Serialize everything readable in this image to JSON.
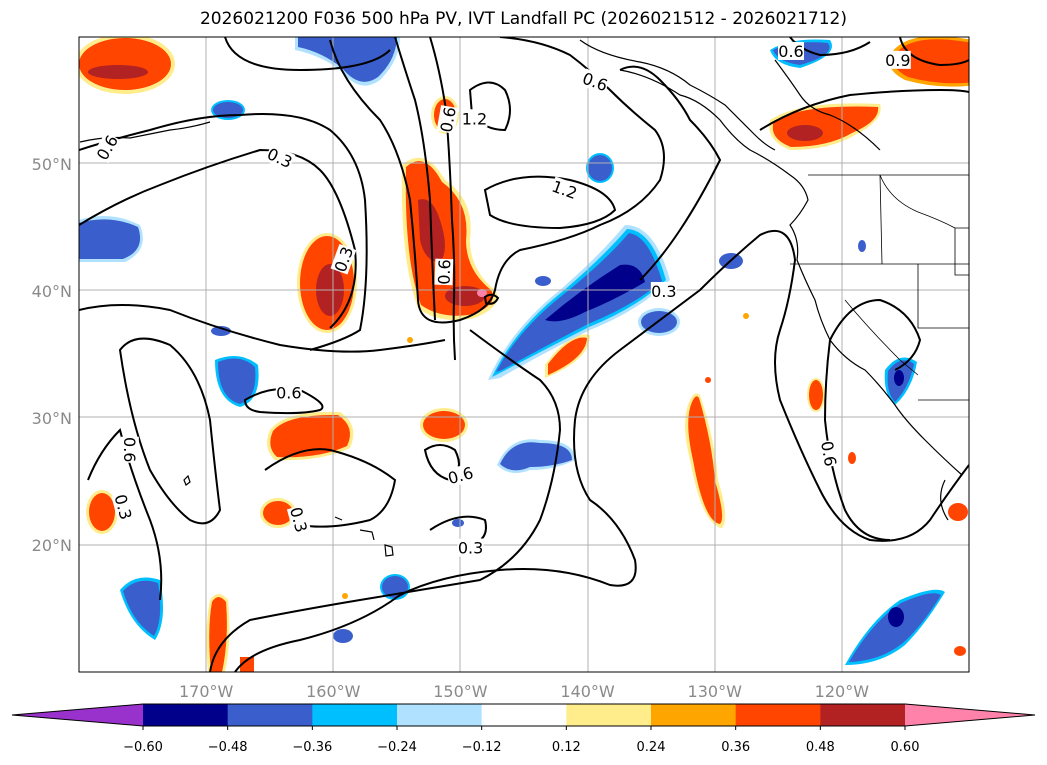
{
  "title": "2026021200 F036 500 hPa PV, IVT Landfall PC (2026021512 - 2026021712)",
  "map": {
    "lon_range": [
      -180,
      -110
    ],
    "lat_range": [
      10,
      60
    ],
    "lat_ticks": [
      {
        "value": 20,
        "label": "20°N"
      },
      {
        "value": 30,
        "label": "30°N"
      },
      {
        "value": 40,
        "label": "40°N"
      },
      {
        "value": 50,
        "label": "50°N"
      }
    ],
    "lon_ticks": [
      {
        "value": -170,
        "label": "170°W"
      },
      {
        "value": -160,
        "label": "160°W"
      },
      {
        "value": -150,
        "label": "150°W"
      },
      {
        "value": -140,
        "label": "140°W"
      },
      {
        "value": -130,
        "label": "130°W"
      },
      {
        "value": -120,
        "label": "120°W"
      }
    ],
    "contour_labels": [
      {
        "text": "0.6",
        "lon": -177.8,
        "lat": 51.3,
        "rot": -60
      },
      {
        "text": "0.3",
        "lon": -164.2,
        "lat": 50.5,
        "rot": 25
      },
      {
        "text": "0.6",
        "lon": -151.0,
        "lat": 53.5,
        "rot": -80
      },
      {
        "text": "1.2",
        "lon": -148.9,
        "lat": 53.6,
        "rot": 0
      },
      {
        "text": "0.6",
        "lon": -139.4,
        "lat": 56.5,
        "rot": 20
      },
      {
        "text": "0.6",
        "lon": -124.0,
        "lat": 58.9,
        "rot": 0
      },
      {
        "text": "0.9",
        "lon": -115.6,
        "lat": 58.2,
        "rot": 0
      },
      {
        "text": "1.2",
        "lon": -141.8,
        "lat": 48.0,
        "rot": 20
      },
      {
        "text": "0.3",
        "lon": -159.2,
        "lat": 42.5,
        "rot": -70
      },
      {
        "text": "0.6",
        "lon": -151.3,
        "lat": 41.5,
        "rot": -88
      },
      {
        "text": "0.3",
        "lon": -134.0,
        "lat": 40.0,
        "rot": 0
      },
      {
        "text": "0.6",
        "lon": -163.5,
        "lat": 32.0,
        "rot": 0
      },
      {
        "text": "0.6",
        "lon": -176.0,
        "lat": 27.5,
        "rot": 90
      },
      {
        "text": "0.3",
        "lon": -176.5,
        "lat": 23.0,
        "rot": 75
      },
      {
        "text": "0.3",
        "lon": -162.7,
        "lat": 22.0,
        "rot": 75
      },
      {
        "text": "0.6",
        "lon": -150.0,
        "lat": 25.5,
        "rot": -15
      },
      {
        "text": "0.3",
        "lon": -149.2,
        "lat": 19.8,
        "rot": 0
      },
      {
        "text": "0.6",
        "lon": -121.0,
        "lat": 27.2,
        "rot": 80
      }
    ]
  },
  "colorbar": {
    "levels": [
      -0.6,
      -0.48,
      -0.36,
      -0.24,
      -0.12,
      0.12,
      0.24,
      0.36,
      0.48,
      0.6
    ],
    "tick_labels": [
      "−0.60",
      "−0.48",
      "−0.36",
      "−0.24",
      "−0.12",
      "0.12",
      "0.24",
      "0.36",
      "0.48",
      "0.60"
    ],
    "colors": [
      "#9932cc",
      "#00008b",
      "#3a5fcd",
      "#00bfff",
      "#b0e2ff",
      "#ffffff",
      "#ffec8b",
      "#ffa500",
      "#ff4500",
      "#b22222",
      "#ff82ab"
    ]
  },
  "colors": {
    "pos1": "#ffec8b",
    "pos2": "#ffa500",
    "pos3": "#ff4500",
    "pos4": "#b22222",
    "pos5": "#ff82ab",
    "neg1": "#b0e2ff",
    "neg2": "#00bfff",
    "neg3": "#3a5fcd",
    "neg4": "#00008b"
  }
}
